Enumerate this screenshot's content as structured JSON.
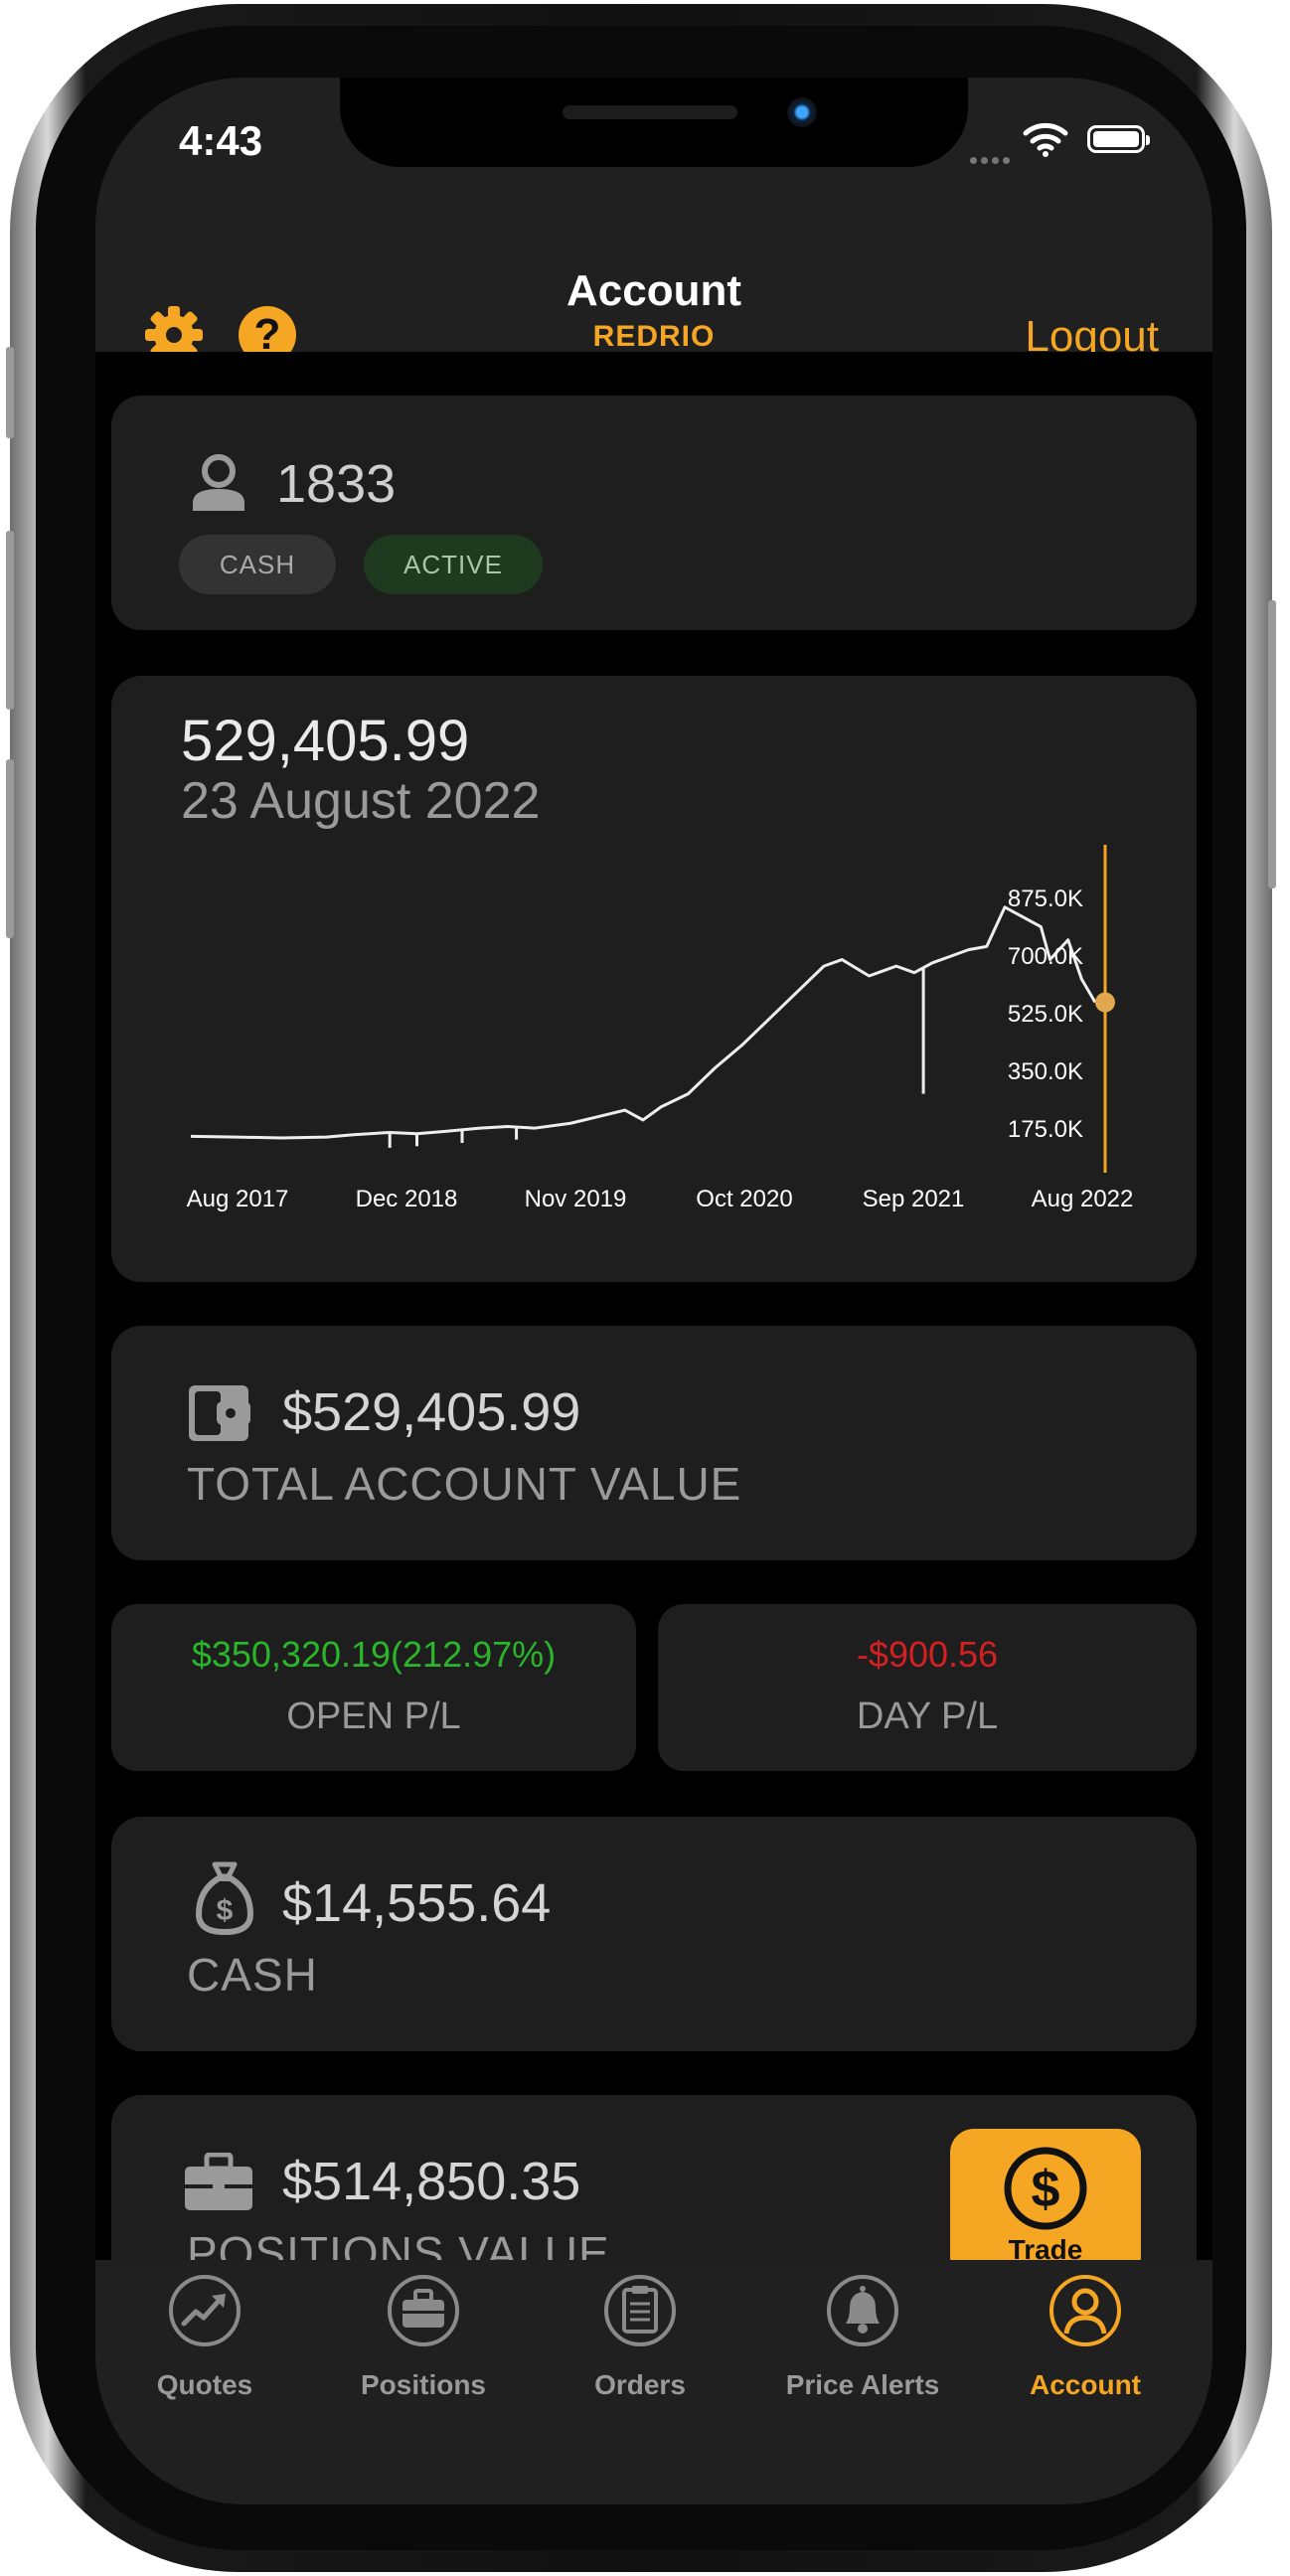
{
  "status_bar": {
    "time": "4:43"
  },
  "nav": {
    "title": "Account",
    "subtitle": "REDRIO",
    "logout_label": "Logout",
    "help_label": "?"
  },
  "account": {
    "number": "1833",
    "type_badge": "CASH",
    "status_badge": "ACTIVE"
  },
  "summary": {
    "value": "529,405.99",
    "date": "23 August 2022"
  },
  "chart_data": {
    "type": "line",
    "x_ticks": [
      "Aug 2017",
      "Dec 2018",
      "Nov 2019",
      "Oct 2020",
      "Sep 2021",
      "Aug 2022"
    ],
    "y_ticks": [
      "875.0K",
      "700.0K",
      "525.0K",
      "350.0K",
      "175.0K"
    ],
    "ylim": [
      100000,
      950000
    ],
    "series": [
      {
        "values": [
          [
            0,
            120000
          ],
          [
            0.05,
            118000
          ],
          [
            0.1,
            115000
          ],
          [
            0.15,
            118000
          ],
          [
            0.18,
            125000
          ],
          [
            0.22,
            132000
          ],
          [
            0.25,
            128000
          ],
          [
            0.28,
            135000
          ],
          [
            0.32,
            145000
          ],
          [
            0.35,
            150000
          ],
          [
            0.38,
            145000
          ],
          [
            0.42,
            160000
          ],
          [
            0.45,
            180000
          ],
          [
            0.48,
            200000
          ],
          [
            0.5,
            170000
          ],
          [
            0.52,
            210000
          ],
          [
            0.55,
            250000
          ],
          [
            0.58,
            330000
          ],
          [
            0.61,
            400000
          ],
          [
            0.64,
            480000
          ],
          [
            0.67,
            560000
          ],
          [
            0.7,
            640000
          ],
          [
            0.72,
            660000
          ],
          [
            0.75,
            610000
          ],
          [
            0.78,
            640000
          ],
          [
            0.8,
            620000
          ],
          [
            0.82,
            650000
          ],
          [
            0.84,
            670000
          ],
          [
            0.86,
            690000
          ],
          [
            0.88,
            700000
          ],
          [
            0.9,
            820000
          ],
          [
            0.92,
            790000
          ],
          [
            0.94,
            760000
          ],
          [
            0.95,
            660000
          ],
          [
            0.97,
            720000
          ],
          [
            0.985,
            600000
          ],
          [
            1,
            529406
          ]
        ]
      }
    ],
    "spikes": [
      [
        0.22,
        85000
      ],
      [
        0.25,
        90000
      ],
      [
        0.3,
        100000
      ],
      [
        0.36,
        110000
      ],
      [
        0.81,
        250000
      ]
    ],
    "current_marker": {
      "x": 1,
      "y": 529406
    }
  },
  "total_value": {
    "value": "$529,405.99",
    "label": "TOTAL ACCOUNT VALUE"
  },
  "open_pl": {
    "value": "$350,320.19(212.97%)",
    "label": "OPEN P/L"
  },
  "day_pl": {
    "value": "-$900.56",
    "label": "DAY P/L"
  },
  "cash": {
    "value": "$14,555.64",
    "label": "CASH"
  },
  "positions": {
    "value": "$514,850.35",
    "label": "POSITIONS VALUE",
    "trade_label": "Trade"
  },
  "tabs": [
    {
      "label": "Quotes",
      "icon": "trend-up-icon"
    },
    {
      "label": "Positions",
      "icon": "briefcase-icon"
    },
    {
      "label": "Orders",
      "icon": "clipboard-icon"
    },
    {
      "label": "Price Alerts",
      "icon": "bell-icon"
    },
    {
      "label": "Account",
      "icon": "person-icon",
      "selected": true
    }
  ],
  "colors": {
    "accent": "#f5a623",
    "positive": "#2bb52b",
    "negative": "#d42020",
    "card": "#1e1e1e"
  }
}
